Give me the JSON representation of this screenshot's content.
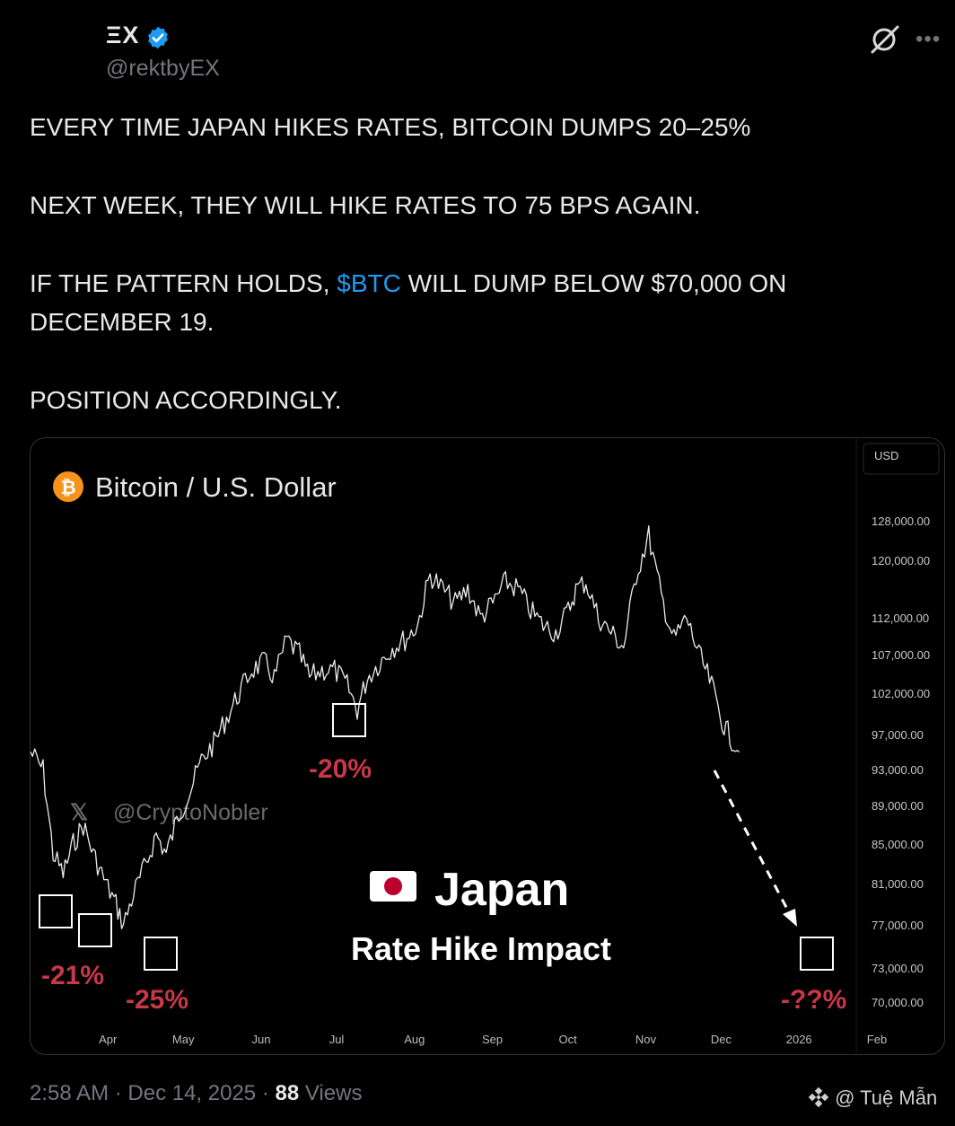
{
  "author": {
    "name": "ΞX",
    "handle": "@rektbyEX"
  },
  "post": {
    "line1": "EVERY TIME JAPAN HIKES RATES, BITCOIN DUMPS 20–25%",
    "line2": "NEXT WEEK, THEY WILL HIKE RATES TO 75 BPS AGAIN.",
    "line3_pre": "IF THE PATTERN HOLDS, ",
    "line3_cashtag": "$BTC",
    "line3_post": " WILL DUMP BELOW $70,000 ON DECEMBER 19.",
    "line4": "POSITION ACCORDINGLY."
  },
  "footer": {
    "time": "2:58 AM · Dec 14, 2025 · ",
    "views_count": "88",
    "views_label": " Views",
    "watermark": "@ Tuệ Mẫn"
  },
  "icons": {
    "verified": "verified-badge-icon",
    "grok": "grok-icon",
    "more": "more-options-icon",
    "bitcoin": "bitcoin-icon",
    "flag": "japan-flag-icon"
  },
  "colors": {
    "accent_link": "#1d9bf0",
    "drop_label": "#c8374a",
    "bitcoin_orange": "#f7931a"
  },
  "chart_data": {
    "type": "line",
    "title": "Bitcoin / U.S. Dollar",
    "currency_label": "USD",
    "watermark": "@CryptoNobler",
    "overlay_title": "Japan",
    "overlay_subtitle": "Rate Hike Impact",
    "x_ticks": [
      "Apr",
      "May",
      "Jun",
      "Jul",
      "Aug",
      "Sep",
      "Oct",
      "Nov",
      "Dec",
      "2026",
      "Feb"
    ],
    "y_ticks": [
      128000,
      120000,
      112000,
      107000,
      102000,
      97000,
      93000,
      89000,
      85000,
      81000,
      77000,
      73000,
      70000
    ],
    "y_tick_labels": [
      "128,000.00",
      "120,000.00",
      "112,000.00",
      "107,000.00",
      "102,000.00",
      "97,000.00",
      "93,000.00",
      "89,000.00",
      "85,000.00",
      "81,000.00",
      "77,000.00",
      "73,000.00",
      "70,000.00"
    ],
    "ylim": [
      70000,
      128000
    ],
    "xlim": [
      "2025-03-03",
      "2026-02-28"
    ],
    "grid": false,
    "series": [
      {
        "x": [
          "2025-03-03",
          "2025-03-08",
          "2025-03-12",
          "2025-03-16",
          "2025-03-20",
          "2025-03-24",
          "2025-03-28",
          "2025-04-02",
          "2025-04-06",
          "2025-04-09",
          "2025-04-13",
          "2025-04-18",
          "2025-04-22",
          "2025-04-26",
          "2025-05-01",
          "2025-05-06",
          "2025-05-10",
          "2025-05-15",
          "2025-05-20",
          "2025-05-25",
          "2025-05-30",
          "2025-06-04",
          "2025-06-08",
          "2025-06-13",
          "2025-06-18",
          "2025-06-22",
          "2025-06-27",
          "2025-07-02",
          "2025-07-07",
          "2025-07-11",
          "2025-07-15",
          "2025-07-20",
          "2025-07-25",
          "2025-07-30",
          "2025-08-04",
          "2025-08-09",
          "2025-08-14",
          "2025-08-19",
          "2025-08-24",
          "2025-08-29",
          "2025-09-03",
          "2025-09-08",
          "2025-09-13",
          "2025-09-18",
          "2025-09-23",
          "2025-09-28",
          "2025-10-03",
          "2025-10-06",
          "2025-10-10",
          "2025-10-15",
          "2025-10-20",
          "2025-10-25",
          "2025-10-30",
          "2025-11-04",
          "2025-11-09",
          "2025-11-14",
          "2025-11-19",
          "2025-11-24",
          "2025-11-29",
          "2025-12-04",
          "2025-12-10"
        ],
        "y": [
          95000,
          93000,
          84000,
          82000,
          85000,
          87000,
          84000,
          81000,
          79000,
          77000,
          80000,
          83000,
          86000,
          84000,
          88000,
          91000,
          94000,
          96000,
          99000,
          102000,
          105000,
          106000,
          104000,
          109000,
          107000,
          104000,
          105000,
          105000,
          103000,
          100000,
          104000,
          106000,
          108000,
          109000,
          111000,
          118000,
          116000,
          114000,
          116000,
          112000,
          114000,
          117000,
          116000,
          113000,
          111000,
          110000,
          113000,
          116000,
          117000,
          112000,
          110000,
          108000,
          118000,
          125000,
          115000,
          109000,
          112000,
          107000,
          103000,
          98000,
          95000
        ]
      }
    ],
    "annotations": [
      {
        "label": "-21%",
        "date": "2025-03-20"
      },
      {
        "label": "-25%",
        "date": "2025-04-09"
      },
      {
        "label": "-20%",
        "date": "2025-07-20"
      },
      {
        "label": "-??%",
        "date": "2026-01-20"
      }
    ]
  }
}
